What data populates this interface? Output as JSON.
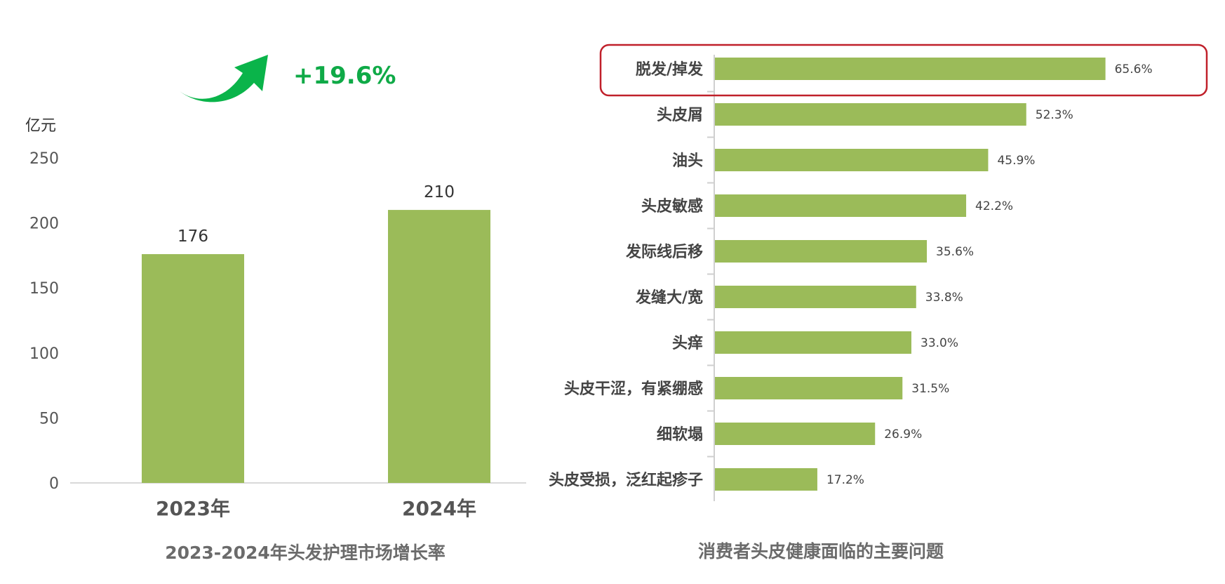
{
  "growth": {
    "label": "+19.6%",
    "arrow_icon": "growth-arrow-icon",
    "arrow_color": "#0ab44a"
  },
  "chart_data": [
    {
      "type": "bar",
      "title": "2023-2024年头发护理市场增长率",
      "ylabel": "亿元",
      "xlabel": "",
      "categories": [
        "2023年",
        "2024年"
      ],
      "values": [
        176,
        210
      ],
      "value_labels": [
        "176",
        "210"
      ],
      "yticks": [
        "0",
        "50",
        "100",
        "150",
        "200",
        "250"
      ],
      "ylim": [
        0,
        250
      ],
      "grid": false,
      "bar_color": "#9bbb59"
    },
    {
      "type": "bar",
      "orientation": "horizontal",
      "title": "消费者头皮健康面临的主要问题",
      "xlabel": "",
      "ylabel": "",
      "categories": [
        "脱发/掉发",
        "头皮屑",
        "油头",
        "头皮敏感",
        "发际线后移",
        "发缝大/宽",
        "头痒",
        "头皮干涩，有紧绷感",
        "细软塌",
        "头皮受损，泛红起疹子"
      ],
      "values": [
        65.6,
        52.3,
        45.9,
        42.2,
        35.6,
        33.8,
        33.0,
        31.5,
        26.9,
        17.2
      ],
      "value_labels": [
        "65.6%",
        "52.3%",
        "45.9%",
        "42.2%",
        "35.6%",
        "33.8%",
        "33.0%",
        "31.5%",
        "26.9%",
        "17.2%"
      ],
      "xlim": [
        0,
        66
      ],
      "highlight_index": 0,
      "highlight_color": "#c0202a",
      "grid": false,
      "bar_color": "#9bbb59"
    }
  ]
}
